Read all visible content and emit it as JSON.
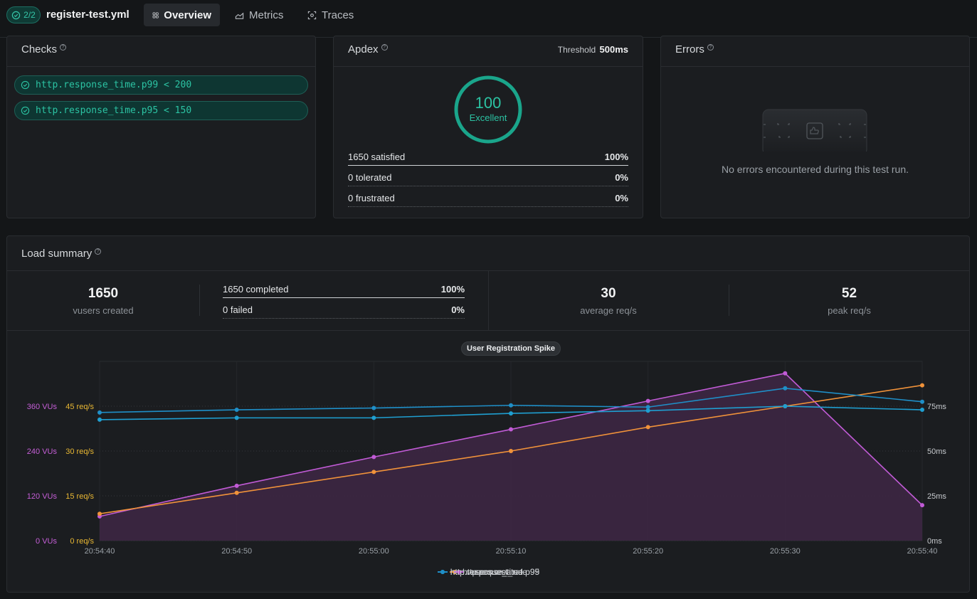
{
  "header": {
    "status_badge": "2/2",
    "file_name": "register-test.yml",
    "tabs": [
      {
        "label": "Overview",
        "active": true
      },
      {
        "label": "Metrics",
        "active": false
      },
      {
        "label": "Traces",
        "active": false
      }
    ]
  },
  "checks": {
    "title": "Checks",
    "items": [
      "http.response_time.p99 < 200",
      "http.response_time.p95 < 150"
    ]
  },
  "apdex": {
    "title": "Apdex",
    "threshold_label": "Threshold",
    "threshold_value": "500ms",
    "score": "100",
    "rating": "Excellent",
    "rows": [
      {
        "label": "1650 satisfied",
        "value": "100%"
      },
      {
        "label": "0 tolerated",
        "value": "0%"
      },
      {
        "label": "0 frustrated",
        "value": "0%"
      }
    ]
  },
  "errors": {
    "title": "Errors",
    "empty_message": "No errors encountered during this test run."
  },
  "load_summary": {
    "title": "Load summary",
    "vusers_created": "1650",
    "vusers_created_label": "vusers created",
    "completed_label": "1650 completed",
    "completed_pct": "100%",
    "failed_label": "0 failed",
    "failed_pct": "0%",
    "avg_rps": "30",
    "avg_rps_label": "average req/s",
    "peak_rps": "52",
    "peak_rps_label": "peak req/s"
  },
  "chart_data": {
    "type": "line",
    "title": "User Registration Spike",
    "x": [
      "20:54:40",
      "20:54:50",
      "20:55:00",
      "20:55:10",
      "20:55:20",
      "20:55:30",
      "20:55:40"
    ],
    "y_left_vus_ticks": [
      "0 VUs",
      "120 VUs",
      "240 VUs",
      "360 VUs"
    ],
    "y_left_rps_ticks": [
      "0 req/s",
      "15 req/s",
      "30 req/s",
      "45 req/s"
    ],
    "y_right_ticks": [
      "0ms",
      "25ms",
      "50ms",
      "75ms"
    ],
    "vus_range": [
      0,
      480
    ],
    "rps_range": [
      0,
      60
    ],
    "ms_range": [
      0,
      100
    ],
    "grid": true,
    "legend_position": "bottom-center",
    "series": [
      {
        "name": "http.request_rate",
        "axis": "rps",
        "color": "#f0923a",
        "values": [
          9,
          16,
          23,
          30,
          38,
          45,
          52
        ]
      },
      {
        "name": "http.response_time.p95",
        "axis": "ms",
        "color": "#1f9fd1",
        "values": [
          67.5,
          68.5,
          68.5,
          71,
          72.5,
          75,
          73
        ]
      },
      {
        "name": "vusers.created",
        "axis": "vus",
        "color": "#c15bd6",
        "values": [
          65,
          147,
          224,
          298,
          374,
          448,
          95
        ],
        "fill": true
      },
      {
        "name": "http.response_time.p99",
        "axis": "ms",
        "color": "#1f8fc8",
        "values": [
          71.5,
          73,
          74,
          75.5,
          74.5,
          85,
          77.5
        ]
      }
    ]
  }
}
